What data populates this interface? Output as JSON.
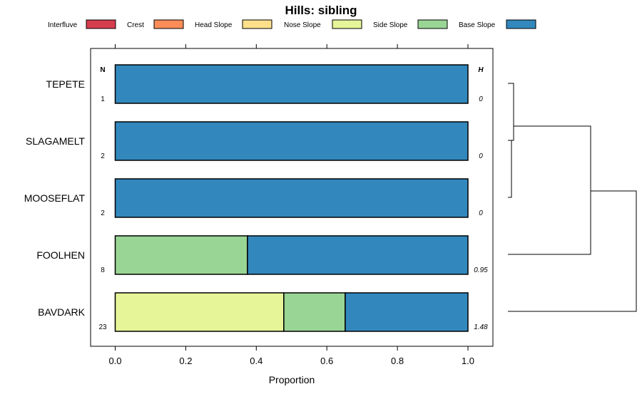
{
  "chart_data": {
    "type": "bar",
    "orientation": "horizontal",
    "stacked": true,
    "title": "Hills: sibling",
    "xlabel": "Proportion",
    "ylabel": "",
    "xlim": [
      -0.07,
      1.07
    ],
    "xticks": [
      0.0,
      0.2,
      0.4,
      0.6,
      0.8,
      1.0
    ],
    "xtick_labels": [
      "0.0",
      "0.2",
      "0.4",
      "0.6",
      "0.8",
      "1.0"
    ],
    "n_header": "N",
    "h_header": "H",
    "categories": [
      "TEPETE",
      "SLAGAMELT",
      "MOOSEFLAT",
      "FOOLHEN",
      "BAVDARK"
    ],
    "n_values": [
      "1",
      "2",
      "2",
      "8",
      "23"
    ],
    "h_values": [
      "0",
      "0",
      "0",
      "0.95",
      "1.48"
    ],
    "series": [
      {
        "name": "Interfluve",
        "color": "#d53e4f",
        "values": [
          0,
          0,
          0,
          0,
          0
        ]
      },
      {
        "name": "Crest",
        "color": "#fc8d59",
        "values": [
          0,
          0,
          0,
          0,
          0
        ]
      },
      {
        "name": "Head Slope",
        "color": "#fee08b",
        "values": [
          0,
          0,
          0,
          0,
          0
        ]
      },
      {
        "name": "Nose Slope",
        "color": "#e6f598",
        "values": [
          0,
          0,
          0,
          0,
          0.478
        ]
      },
      {
        "name": "Side Slope",
        "color": "#99d594",
        "values": [
          0,
          0,
          0,
          0.375,
          0.174
        ]
      },
      {
        "name": "Base Slope",
        "color": "#3288bd",
        "values": [
          1,
          1,
          1,
          0.625,
          0.348
        ]
      }
    ],
    "legend_position": "top",
    "grid": false,
    "dendrogram": "right"
  }
}
